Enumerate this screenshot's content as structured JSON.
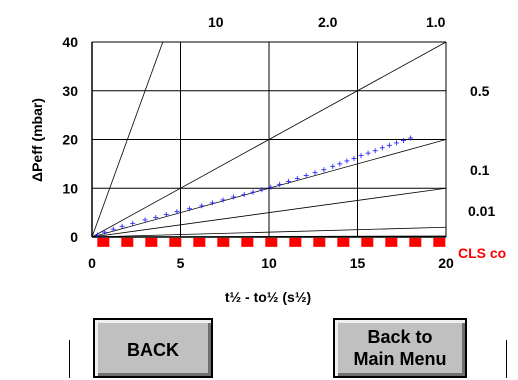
{
  "chart_data": {
    "type": "scatter",
    "title": "",
    "xlabel": "t½ - to½ (s½)",
    "ylabel": "ΔPeff (mbar)",
    "xlim": [
      0,
      20
    ],
    "ylim": [
      0,
      40
    ],
    "x_ticks": [
      "0",
      "5",
      "10",
      "15",
      "20"
    ],
    "y_ticks": [
      "0",
      "10",
      "20",
      "30",
      "40"
    ],
    "grid": true,
    "reference_lines": [
      {
        "label": "10",
        "slope": 10
      },
      {
        "label": "2.0",
        "slope": 2.0
      },
      {
        "label": "1.0",
        "slope": 1.0
      },
      {
        "label": "0.5",
        "slope": 0.5
      },
      {
        "label": "0.1",
        "slope": 0.1
      },
      {
        "label": "0.01",
        "slope": 0.01
      }
    ],
    "series": [
      {
        "color": "#2a2aff",
        "marker": "+",
        "x": [
          0.3,
          0.7,
          1.2,
          1.7,
          2.3,
          3.0,
          3.6,
          4.2,
          4.8,
          5.5,
          6.2,
          6.8,
          7.4,
          8.0,
          8.6,
          9.1,
          9.6,
          10.1,
          10.6,
          11.1,
          11.6,
          12.1,
          12.6,
          13.1,
          13.6,
          14.0,
          14.4,
          14.8,
          15.2,
          15.6,
          16.0,
          16.4,
          16.8,
          17.2,
          17.6,
          18.0
        ],
        "y": [
          0.4,
          1.0,
          1.6,
          2.2,
          2.8,
          3.5,
          4.0,
          4.6,
          5.2,
          5.8,
          6.4,
          7.0,
          7.6,
          8.2,
          8.7,
          9.2,
          9.7,
          10.2,
          10.8,
          11.4,
          12.0,
          12.6,
          13.2,
          13.8,
          14.5,
          15.0,
          15.6,
          16.1,
          16.7,
          17.2,
          17.7,
          18.3,
          18.8,
          19.3,
          19.8,
          20.3
        ]
      }
    ],
    "threshold": {
      "label": "CLS co",
      "y": -1.1,
      "color": "#ff0000",
      "style": "dashed"
    }
  },
  "buttons": {
    "back_label": "BACK",
    "main_menu_line1": "Back to",
    "main_menu_line2": "Main Menu"
  }
}
